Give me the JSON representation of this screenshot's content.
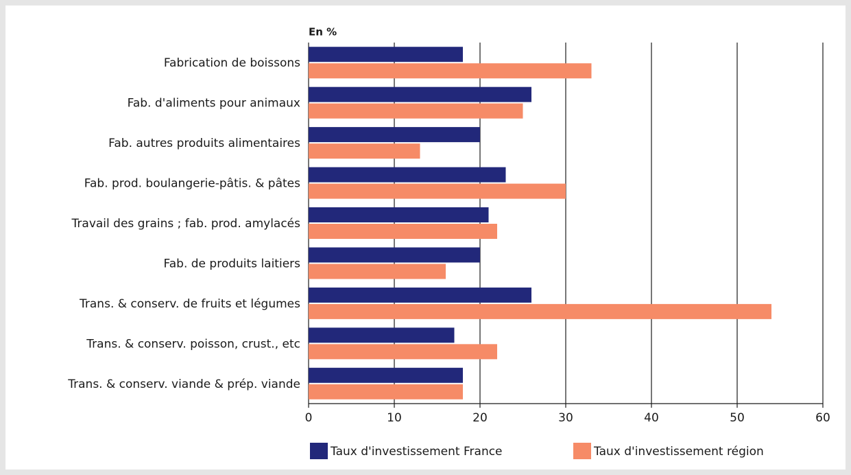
{
  "chart_data": {
    "type": "bar",
    "orientation": "horizontal",
    "axis_unit": "En %",
    "categories": [
      "Fabrication de boissons",
      "Fab. d'aliments pour animaux",
      "Fab. autres produits alimentaires",
      "Fab. prod. boulangerie-pâtis. & pâtes",
      "Travail des grains ; fab. prod. amylacés",
      "Fab. de produits laitiers",
      "Trans. & conserv. de fruits et légumes",
      "Trans. & conserv. poisson, crust., etc",
      "Trans. & conserv. viande & prép. viande"
    ],
    "series": [
      {
        "name": "Taux d'investissement France",
        "color": "#22287a",
        "values": [
          18,
          26,
          20,
          23,
          21,
          20,
          26,
          17,
          18
        ]
      },
      {
        "name": "Taux d'investissement région",
        "color": "#f68b67",
        "values": [
          33,
          25,
          13,
          30,
          22,
          16,
          54,
          22,
          18
        ]
      }
    ],
    "xlim": [
      0,
      60
    ],
    "xticks": [
      0,
      10,
      20,
      30,
      40,
      50,
      60
    ],
    "grid": true,
    "legend": "bottom"
  }
}
